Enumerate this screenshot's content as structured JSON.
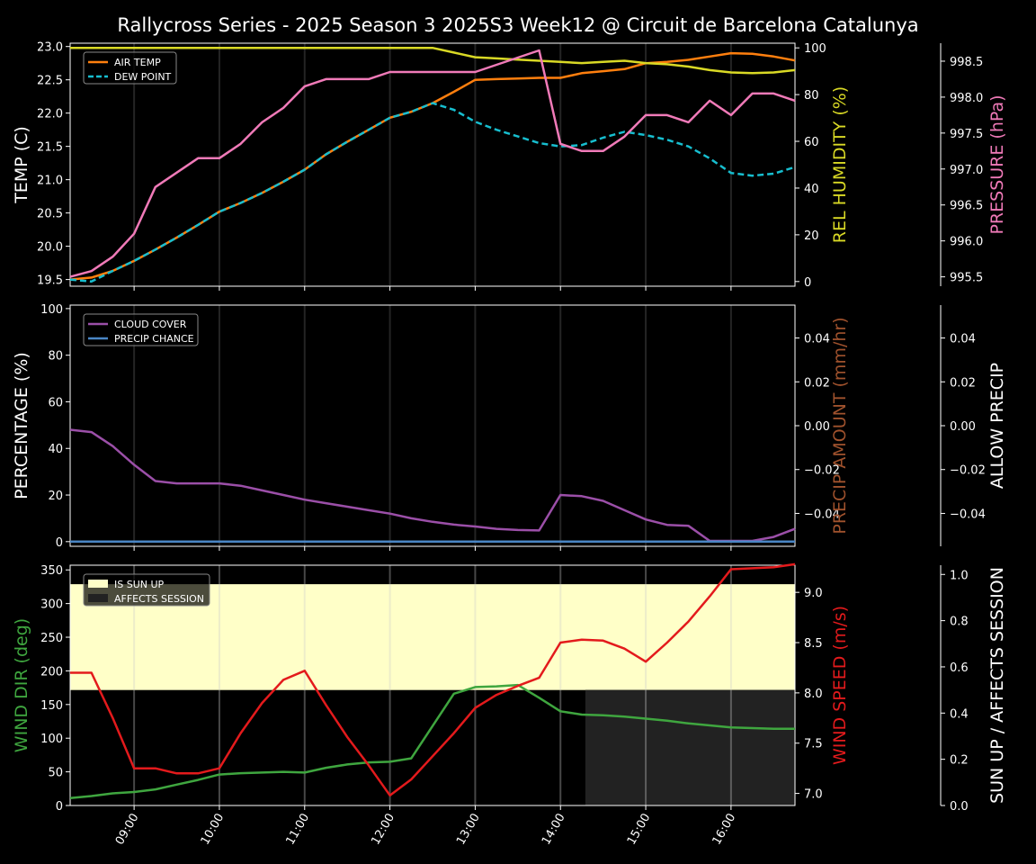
{
  "title": "Rallycross Series - 2025 Season 3 2025S3 Week12 @ Circuit de Barcelona Catalunya",
  "colors": {
    "air_temp": "#ff7f0e",
    "dew_point": "#17becf",
    "humidity": "#d9d925",
    "pressure": "#f07ab8",
    "cloud": "#9b4fa8",
    "precip_chance": "#4a86c5",
    "precip_amount_label": "#a0522d",
    "wind_dir": "#3fa63f",
    "wind_speed": "#e31a1c",
    "sun_up": "#ffffc8",
    "affects": "#222222"
  },
  "chart_data": [
    {
      "type": "line",
      "x": [
        "08:15",
        "08:30",
        "08:45",
        "09:00",
        "09:15",
        "09:30",
        "09:45",
        "10:00",
        "10:15",
        "10:30",
        "10:45",
        "11:00",
        "11:15",
        "11:30",
        "11:45",
        "12:00",
        "12:15",
        "12:30",
        "12:45",
        "13:00",
        "13:15",
        "13:30",
        "13:45",
        "14:00",
        "14:15",
        "14:30",
        "14:45",
        "15:00",
        "15:15",
        "15:30",
        "15:45",
        "16:00",
        "16:15",
        "16:30",
        "16:45"
      ],
      "axes": {
        "left": {
          "label": "TEMP (C)",
          "ticks": [
            "19.5",
            "20.0",
            "20.5",
            "21.0",
            "21.5",
            "22.0",
            "22.5",
            "23.0"
          ],
          "range": [
            19.4,
            23.05
          ]
        },
        "right": {
          "label": "REL HUMIDITY (%)",
          "ticks": [
            "0",
            "20",
            "40",
            "60",
            "80",
            "100"
          ],
          "range": [
            -2,
            102
          ]
        },
        "right2": {
          "label": "PRESSURE (hPa)",
          "ticks": [
            "995.5",
            "996.0",
            "996.5",
            "997.0",
            "997.5",
            "998.0",
            "998.5"
          ],
          "range": [
            995.37,
            998.75
          ]
        }
      },
      "series": [
        {
          "name": "AIR TEMP",
          "axis": "left",
          "values": [
            19.5,
            19.53,
            19.63,
            19.78,
            19.95,
            20.13,
            20.32,
            20.52,
            20.65,
            20.8,
            20.97,
            21.15,
            21.38,
            21.57,
            21.75,
            21.93,
            22.02,
            22.15,
            22.32,
            22.5,
            22.51,
            22.52,
            22.53,
            22.53,
            22.6,
            22.63,
            22.66,
            22.75,
            22.77,
            22.8,
            22.85,
            22.9,
            22.89,
            22.85,
            22.79
          ]
        },
        {
          "name": "DEW POINT",
          "axis": "left",
          "values": [
            19.5,
            19.47,
            19.63,
            19.78,
            19.95,
            20.13,
            20.32,
            20.52,
            20.65,
            20.8,
            20.97,
            21.15,
            21.38,
            21.57,
            21.75,
            21.93,
            22.02,
            22.15,
            22.05,
            21.87,
            21.75,
            21.65,
            21.55,
            21.5,
            21.52,
            21.63,
            21.72,
            21.67,
            21.6,
            21.5,
            21.32,
            21.1,
            21.06,
            21.09,
            21.19
          ]
        },
        {
          "name": "REL HUMIDITY",
          "axis": "right",
          "values": [
            100,
            100,
            100,
            100,
            100,
            100,
            100,
            100,
            100,
            100,
            100,
            100,
            100,
            100,
            100,
            100,
            100,
            100,
            98,
            96,
            95.5,
            95,
            94.5,
            94,
            93.5,
            94,
            94.5,
            93.5,
            93,
            92,
            90.5,
            89.5,
            89.2,
            89.5,
            90.5
          ]
        },
        {
          "name": "PRESSURE",
          "axis": "right2",
          "values": [
            995.5,
            995.58,
            995.78,
            996.1,
            996.75,
            996.95,
            997.15,
            997.15,
            997.35,
            997.65,
            997.85,
            998.15,
            998.25,
            998.25,
            998.25,
            998.35,
            998.35,
            998.35,
            998.35,
            998.35,
            998.45,
            998.55,
            998.65,
            997.35,
            997.25,
            997.25,
            997.45,
            997.75,
            997.75,
            997.65,
            997.95,
            997.75,
            998.05,
            998.05,
            997.95
          ]
        }
      ]
    },
    {
      "type": "line",
      "x": [
        "08:15",
        "08:30",
        "08:45",
        "09:00",
        "09:15",
        "09:30",
        "09:45",
        "10:00",
        "10:15",
        "10:30",
        "10:45",
        "11:00",
        "11:15",
        "11:30",
        "11:45",
        "12:00",
        "12:15",
        "12:30",
        "12:45",
        "13:00",
        "13:15",
        "13:30",
        "13:45",
        "14:00",
        "14:15",
        "14:30",
        "14:45",
        "15:00",
        "15:15",
        "15:30",
        "15:45",
        "16:00",
        "16:15",
        "16:30",
        "16:45"
      ],
      "axes": {
        "left": {
          "label": "PERCENTAGE (%)",
          "ticks": [
            "0",
            "20",
            "40",
            "60",
            "80",
            "100"
          ],
          "range": [
            -2,
            101.5
          ]
        },
        "right": {
          "label": "PRECIP AMOUNT (mm/hr)",
          "ticks": [
            "−0.04",
            "−0.02",
            "0.00",
            "0.02",
            "0.04"
          ],
          "range": [
            -0.055,
            0.055
          ]
        },
        "right2": {
          "label": "ALLOW PRECIP",
          "ticks": [
            "−0.04",
            "−0.02",
            "0.00",
            "0.02",
            "0.04"
          ],
          "range": [
            -0.055,
            0.055
          ]
        }
      },
      "series": [
        {
          "name": "CLOUD COVER",
          "axis": "left",
          "values": [
            48,
            47,
            41,
            33,
            26,
            25,
            25,
            25,
            24,
            22,
            20,
            18,
            16.5,
            15,
            13.5,
            12,
            10,
            8.5,
            7.3,
            6.5,
            5.5,
            5,
            4.8,
            20,
            19.5,
            17.5,
            13.5,
            9.5,
            7.2,
            6.8,
            0.3,
            0.3,
            0.3,
            2,
            5.5
          ]
        },
        {
          "name": "PRECIP CHANCE",
          "axis": "left",
          "values": [
            0,
            0,
            0,
            0,
            0,
            0,
            0,
            0,
            0,
            0,
            0,
            0,
            0,
            0,
            0,
            0,
            0,
            0,
            0,
            0,
            0,
            0,
            0,
            0,
            0,
            0,
            0,
            0,
            0,
            0,
            0,
            0,
            0,
            0,
            0
          ]
        }
      ]
    },
    {
      "type": "line",
      "x": [
        "08:15",
        "08:30",
        "08:45",
        "09:00",
        "09:15",
        "09:30",
        "09:45",
        "10:00",
        "10:15",
        "10:30",
        "10:45",
        "11:00",
        "11:15",
        "11:30",
        "11:45",
        "12:00",
        "12:15",
        "12:30",
        "12:45",
        "13:00",
        "13:15",
        "13:30",
        "13:45",
        "14:00",
        "14:15",
        "14:30",
        "14:45",
        "15:00",
        "15:15",
        "15:30",
        "15:45",
        "16:00",
        "16:15",
        "16:30",
        "16:45"
      ],
      "axes": {
        "left": {
          "label": "WIND DIR (deg)",
          "ticks": [
            "0",
            "50",
            "100",
            "150",
            "200",
            "250",
            "300",
            "350"
          ],
          "range": [
            0,
            357
          ]
        },
        "right": {
          "label": "WIND SPEED (m/s)",
          "ticks": [
            "7.0",
            "7.5",
            "8.0",
            "8.5",
            "9.0"
          ],
          "range": [
            6.88,
            9.27
          ]
        },
        "right2": {
          "label": "SUN UP / AFFECTS SESSION",
          "ticks": [
            "0.0",
            "0.2",
            "0.4",
            "0.6",
            "0.8",
            "1.0"
          ],
          "range": [
            0,
            1.04
          ]
        }
      },
      "series": [
        {
          "name": "WIND DIR",
          "axis": "left",
          "values": [
            11,
            14,
            18,
            20,
            24,
            31,
            38,
            46,
            48,
            49,
            50,
            49,
            56,
            61,
            64,
            65,
            70,
            118,
            166,
            176,
            177,
            179,
            160,
            140,
            135,
            134,
            132,
            129,
            126,
            122,
            119,
            116,
            115,
            114,
            114
          ]
        },
        {
          "name": "WIND SPEED",
          "axis": "right",
          "values": [
            8.2,
            8.2,
            7.75,
            7.25,
            7.25,
            7.2,
            7.2,
            7.25,
            7.6,
            7.9,
            8.13,
            8.22,
            7.88,
            7.56,
            7.28,
            6.98,
            7.14,
            7.37,
            7.6,
            7.85,
            7.98,
            8.07,
            8.15,
            8.5,
            8.53,
            8.52,
            8.44,
            8.31,
            8.5,
            8.71,
            8.96,
            9.23,
            9.24,
            9.25,
            9.28
          ]
        },
        {
          "name": "IS SUN UP",
          "axis": "right2",
          "values": [
            1,
            1,
            1,
            1,
            1,
            1,
            1,
            1,
            1,
            1,
            1,
            1,
            1,
            1,
            1,
            1,
            1,
            1,
            1,
            1,
            1,
            1,
            1,
            1,
            1,
            1,
            1,
            1,
            1,
            1,
            1,
            1,
            1,
            1,
            1
          ]
        },
        {
          "name": "AFFECTS SESSION",
          "axis": "right2",
          "values": [
            0,
            0,
            0,
            0,
            0,
            0,
            0,
            0,
            0,
            0,
            0,
            0,
            0,
            0,
            0,
            0,
            0,
            0,
            0,
            0,
            0,
            0,
            0,
            0,
            1,
            1,
            1,
            1,
            1,
            1,
            1,
            1,
            1,
            1,
            1
          ]
        }
      ]
    }
  ],
  "x_ticks": [
    "09:00",
    "10:00",
    "11:00",
    "12:00",
    "13:00",
    "14:00",
    "15:00",
    "16:00"
  ]
}
